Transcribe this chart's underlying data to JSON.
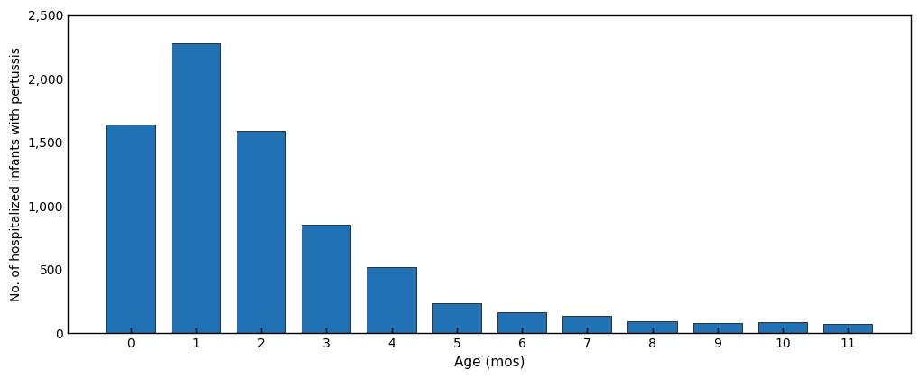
{
  "categories": [
    0,
    1,
    2,
    3,
    4,
    5,
    6,
    7,
    8,
    9,
    10,
    11
  ],
  "values": [
    1640,
    2280,
    1590,
    850,
    520,
    240,
    165,
    140,
    95,
    80,
    85,
    75
  ],
  "bar_color": "#2171b5",
  "bar_edge_color": "#1a1a1a",
  "xlabel": "Age (mos)",
  "ylabel": "No. of hospitalized infants with pertussis",
  "ylim": [
    0,
    2500
  ],
  "yticks": [
    0,
    500,
    1000,
    1500,
    2000,
    2500
  ],
  "figsize": [
    10.2,
    4.2
  ],
  "dpi": 100,
  "background_color": "#ffffff"
}
